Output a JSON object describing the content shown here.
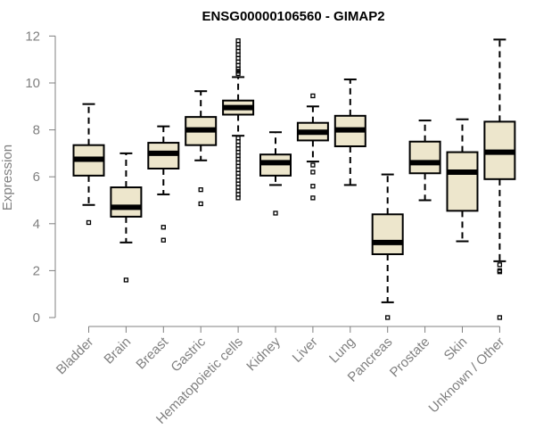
{
  "chart_data": {
    "type": "boxplot",
    "title": "ENSG00000106560 - GIMAP2",
    "xlabel": "",
    "ylabel": "Expression",
    "ylim": [
      0,
      12
    ],
    "yticks": [
      0,
      2,
      4,
      6,
      8,
      10,
      12
    ],
    "categories": [
      "Bladder",
      "Brain",
      "Breast",
      "Gastric",
      "Hematopoietic cells",
      "Kidney",
      "Liver",
      "Lung",
      "Pancreas",
      "Prostate",
      "Skin",
      "Unknown / Other"
    ],
    "boxes": [
      {
        "min": 4.8,
        "q1": 6.05,
        "median": 6.75,
        "q3": 7.35,
        "max": 9.1,
        "outliers": [
          4.05
        ]
      },
      {
        "min": 3.2,
        "q1": 4.3,
        "median": 4.7,
        "q3": 5.55,
        "max": 7.0,
        "outliers": [
          1.6
        ]
      },
      {
        "min": 5.25,
        "q1": 6.35,
        "median": 7.0,
        "q3": 7.45,
        "max": 8.15,
        "outliers": [
          3.85,
          3.3
        ]
      },
      {
        "min": 6.7,
        "q1": 7.35,
        "median": 8.0,
        "q3": 8.55,
        "max": 9.65,
        "outliers": [
          5.45,
          4.85
        ]
      },
      {
        "min": 7.75,
        "q1": 8.65,
        "median": 8.95,
        "q3": 9.25,
        "max": 10.25,
        "outliers": [
          11.8,
          11.65,
          11.5,
          11.35,
          11.2,
          11.05,
          10.9,
          10.75,
          10.6,
          10.5,
          10.4,
          7.65,
          7.5,
          7.35,
          7.2,
          7.05,
          6.9,
          6.75,
          6.6,
          6.45,
          6.3,
          6.15,
          6.0,
          5.85,
          5.7,
          5.55,
          5.4,
          5.25,
          5.1
        ]
      },
      {
        "min": 5.65,
        "q1": 6.05,
        "median": 6.6,
        "q3": 6.95,
        "max": 7.9,
        "outliers": [
          4.45
        ]
      },
      {
        "min": 6.65,
        "q1": 7.55,
        "median": 7.9,
        "q3": 8.3,
        "max": 9.0,
        "outliers": [
          9.45,
          6.5,
          6.2,
          5.6,
          5.1
        ]
      },
      {
        "min": 5.65,
        "q1": 7.3,
        "median": 8.0,
        "q3": 8.6,
        "max": 10.15,
        "outliers": []
      },
      {
        "min": 0.65,
        "q1": 2.7,
        "median": 3.2,
        "q3": 4.4,
        "max": 6.1,
        "outliers": [
          0.0
        ]
      },
      {
        "min": 5.0,
        "q1": 6.15,
        "median": 6.6,
        "q3": 7.5,
        "max": 8.4,
        "outliers": []
      },
      {
        "min": 3.25,
        "q1": 4.55,
        "median": 6.2,
        "q3": 7.05,
        "max": 8.45,
        "outliers": []
      },
      {
        "min": 2.4,
        "q1": 5.9,
        "median": 7.05,
        "q3": 8.35,
        "max": 11.85,
        "outliers": [
          2.25,
          2.0,
          1.95,
          0.0
        ]
      }
    ]
  }
}
